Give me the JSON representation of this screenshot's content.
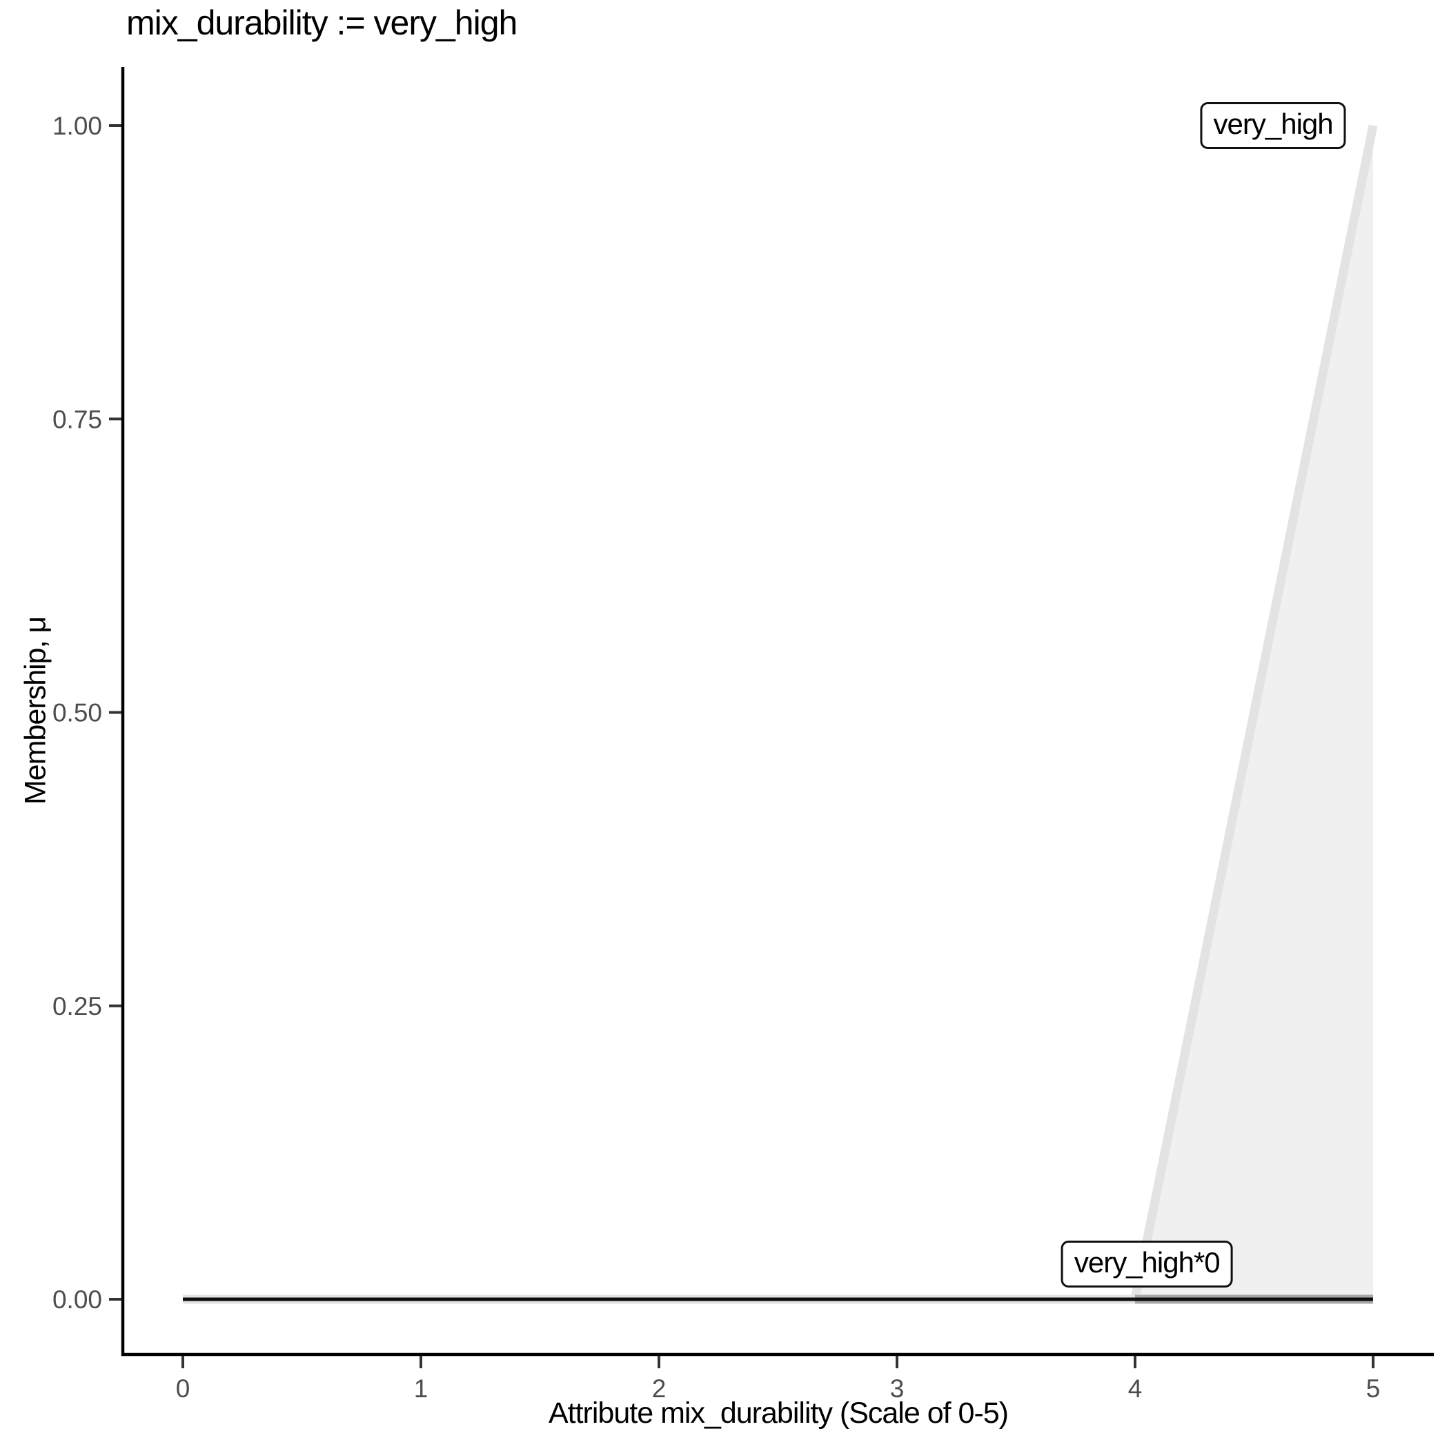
{
  "chart_data": {
    "type": "area",
    "title": "mix_durability := very_high",
    "xlabel": "Attribute mix_durability (Scale of 0-5)",
    "ylabel": "Membership, μ",
    "xlim": [
      0,
      5
    ],
    "ylim": [
      0,
      1
    ],
    "grid": false,
    "legend": "none",
    "x_ticks": [
      {
        "value": 0,
        "label": "0"
      },
      {
        "value": 1,
        "label": "1"
      },
      {
        "value": 2,
        "label": "2"
      },
      {
        "value": 3,
        "label": "3"
      },
      {
        "value": 4,
        "label": "4"
      },
      {
        "value": 5,
        "label": "5"
      }
    ],
    "y_ticks": [
      {
        "value": 0,
        "label": "0.00"
      },
      {
        "value": 0.25,
        "label": "0.25"
      },
      {
        "value": 0.5,
        "label": "0.50"
      },
      {
        "value": 0.75,
        "label": "0.75"
      },
      {
        "value": 1,
        "label": "1.00"
      }
    ],
    "series": [
      {
        "name": "very_high_fill",
        "kind": "polygon",
        "points": [
          [
            4,
            0
          ],
          [
            5,
            1
          ],
          [
            5,
            0
          ]
        ],
        "fill": "#f0f0f0"
      },
      {
        "name": "very_high_membership_function",
        "kind": "line",
        "points": [
          [
            0,
            0
          ],
          [
            4,
            0
          ],
          [
            5,
            1
          ]
        ],
        "color": "#e3e3e3",
        "width": 13
      },
      {
        "name": "activated_support_band",
        "kind": "line",
        "points": [
          [
            4,
            0
          ],
          [
            5,
            0
          ]
        ],
        "color": "#a8a8a8",
        "width": 13
      },
      {
        "name": "very_high_activated",
        "kind": "line",
        "points": [
          [
            0,
            0
          ],
          [
            5,
            0
          ]
        ],
        "color": "#0d0d0d",
        "width": 5
      }
    ],
    "annotations": [
      {
        "id": "set-label",
        "text": "very_high",
        "x": 4.58,
        "y": 1.0
      },
      {
        "id": "activated-set-label",
        "text": "very_high*0",
        "x": 4.05,
        "y": 0.03
      }
    ],
    "colors": {
      "background": "#ffffff",
      "axis_line": "#000000",
      "tick_mark": "#333333",
      "tick_label": "#4d4d4d",
      "title_text": "#000000",
      "set_fill": "#f0f0f0",
      "set_line": "#e3e3e3",
      "activated_band": "#a8a8a8",
      "activated_line": "#0d0d0d"
    }
  }
}
